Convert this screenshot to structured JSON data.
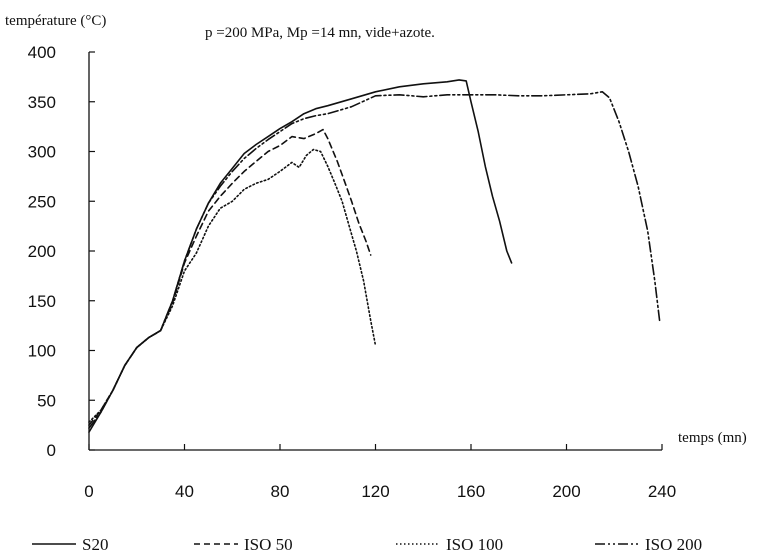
{
  "chart_data": {
    "type": "line",
    "title": "p =200 MPa, Mp =14 mn, vide+azote.",
    "ylabel": "température (°C)",
    "xlabel": "temps (mn)",
    "xlim": [
      0,
      240
    ],
    "ylim": [
      0,
      400
    ],
    "xticks": [
      0,
      40,
      80,
      120,
      160,
      200,
      240
    ],
    "yticks": [
      0,
      50,
      100,
      150,
      200,
      250,
      300,
      350,
      400
    ],
    "grid": false,
    "legend_position": "bottom",
    "series": [
      {
        "name": "S20",
        "dash": "solid",
        "x": [
          0,
          5,
          10,
          15,
          20,
          25,
          30,
          35,
          40,
          45,
          50,
          55,
          60,
          65,
          70,
          75,
          80,
          85,
          90,
          95,
          100,
          110,
          120,
          130,
          140,
          150,
          155,
          158,
          160,
          163,
          166,
          169,
          172,
          175,
          177
        ],
        "y": [
          18,
          38,
          60,
          85,
          103,
          113,
          120,
          150,
          190,
          222,
          248,
          268,
          283,
          298,
          307,
          315,
          323,
          330,
          338,
          343,
          346,
          353,
          360,
          365,
          368,
          370,
          372,
          371,
          350,
          320,
          285,
          255,
          230,
          200,
          188
        ]
      },
      {
        "name": "ISO 50",
        "dash": "dashed",
        "x": [
          0,
          5,
          10,
          15,
          20,
          25,
          30,
          35,
          40,
          45,
          50,
          55,
          60,
          65,
          70,
          75,
          80,
          85,
          90,
          95,
          98,
          100,
          104,
          107,
          110,
          113,
          116,
          118
        ],
        "y": [
          25,
          40,
          60,
          85,
          103,
          113,
          120,
          148,
          188,
          215,
          240,
          255,
          268,
          280,
          290,
          300,
          306,
          315,
          313,
          318,
          322,
          313,
          290,
          270,
          250,
          228,
          210,
          196
        ]
      },
      {
        "name": "ISO 100",
        "dash": "dotted",
        "x": [
          0,
          5,
          10,
          15,
          20,
          25,
          30,
          35,
          40,
          45,
          50,
          55,
          60,
          65,
          70,
          75,
          80,
          85,
          88,
          91,
          94,
          97,
          100,
          103,
          106,
          109,
          112,
          115,
          118,
          120
        ],
        "y": [
          28,
          40,
          60,
          85,
          103,
          113,
          120,
          145,
          180,
          198,
          225,
          243,
          250,
          262,
          268,
          272,
          280,
          289,
          284,
          296,
          302,
          300,
          285,
          268,
          250,
          225,
          200,
          170,
          130,
          105
        ]
      },
      {
        "name": "ISO 200",
        "dash": "dashdotdot",
        "x": [
          0,
          5,
          10,
          15,
          20,
          25,
          30,
          35,
          40,
          45,
          50,
          55,
          60,
          65,
          70,
          75,
          80,
          85,
          90,
          95,
          100,
          110,
          120,
          130,
          140,
          150,
          160,
          170,
          180,
          190,
          200,
          210,
          215,
          218,
          222,
          226,
          230,
          234,
          237,
          239
        ],
        "y": [
          22,
          38,
          60,
          85,
          103,
          113,
          120,
          150,
          190,
          222,
          248,
          265,
          280,
          293,
          303,
          312,
          320,
          328,
          333,
          336,
          338,
          345,
          356,
          357,
          355,
          357,
          357,
          357,
          356,
          356,
          357,
          358,
          360,
          354,
          330,
          300,
          265,
          220,
          170,
          130
        ]
      }
    ]
  }
}
